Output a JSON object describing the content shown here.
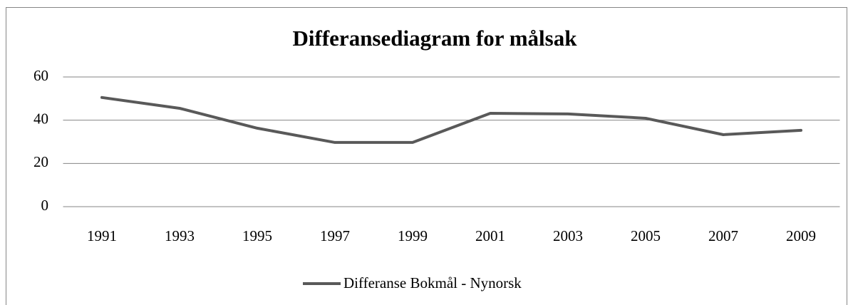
{
  "chart_data": {
    "type": "line",
    "title": "Differansediagram for målsak",
    "categories": [
      "1991",
      "1993",
      "1995",
      "1997",
      "1999",
      "2001",
      "2003",
      "2005",
      "2007",
      "2009"
    ],
    "series": [
      {
        "name": "Differanse Bokmål - Nynorsk",
        "color": "#595959",
        "values": [
          50.5,
          45.5,
          36.3,
          29.7,
          29.7,
          43.2,
          42.9,
          40.9,
          33.3,
          35.3
        ]
      }
    ],
    "ylim": [
      0,
      60
    ],
    "yticks": [
      0,
      20,
      40,
      60
    ],
    "grid": true,
    "legend": "bottom"
  }
}
